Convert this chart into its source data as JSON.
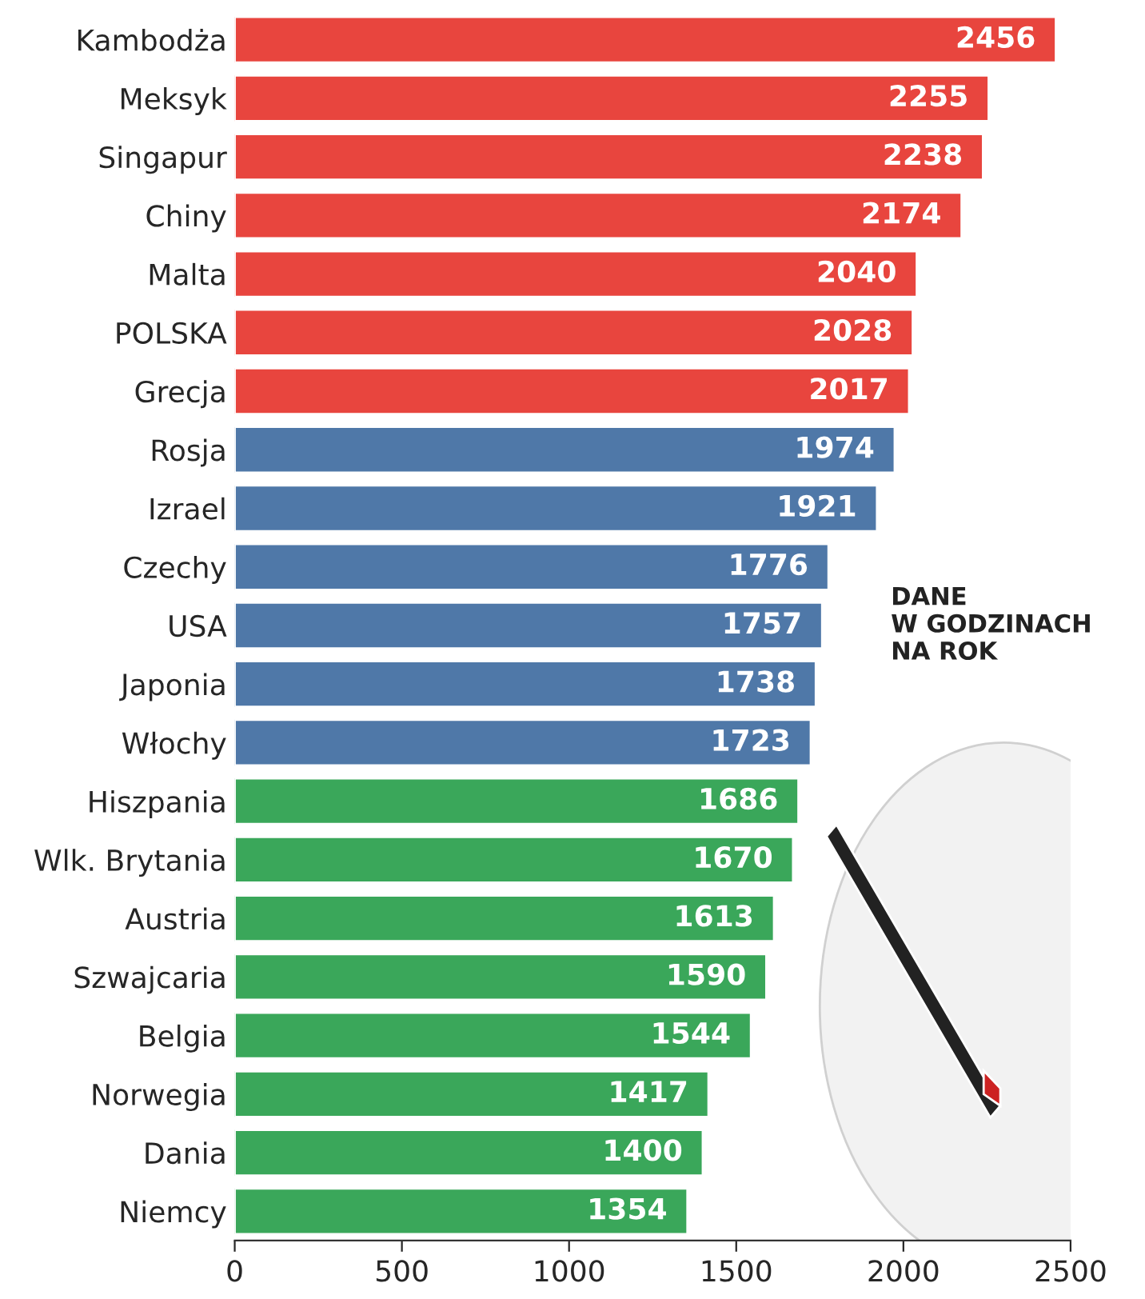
{
  "chart_data": {
    "type": "bar",
    "orientation": "horizontal",
    "categories": [
      "Kambodża",
      "Meksyk",
      "Singapur",
      "Chiny",
      "Malta",
      "POLSKA",
      "Grecja",
      "Rosja",
      "Izrael",
      "Czechy",
      "USA",
      "Japonia",
      "Włochy",
      "Hiszpania",
      "Wlk. Brytania",
      "Austria",
      "Szwajcaria",
      "Belgia",
      "Norwegia",
      "Dania",
      "Niemcy"
    ],
    "values": [
      2456,
      2255,
      2238,
      2174,
      2040,
      2028,
      2017,
      1974,
      1921,
      1776,
      1757,
      1738,
      1723,
      1686,
      1670,
      1613,
      1590,
      1544,
      1417,
      1400,
      1354
    ],
    "colors": [
      "#e8453e",
      "#e8453e",
      "#e8453e",
      "#e8453e",
      "#e8453e",
      "#e8453e",
      "#e8453e",
      "#4f78a8",
      "#4f78a8",
      "#4f78a8",
      "#4f78a8",
      "#4f78a8",
      "#4f78a8",
      "#3aa75a",
      "#3aa75a",
      "#3aa75a",
      "#3aa75a",
      "#3aa75a",
      "#3aa75a",
      "#3aa75a",
      "#3aa75a"
    ],
    "xlim": [
      0,
      2500
    ],
    "xticks": [
      0,
      500,
      1000,
      1500,
      2000,
      2500
    ],
    "data_labels": true,
    "grid": false,
    "legend": false,
    "annotations": [
      "DANE\nW GODZINACH\nNA ROK"
    ]
  }
}
